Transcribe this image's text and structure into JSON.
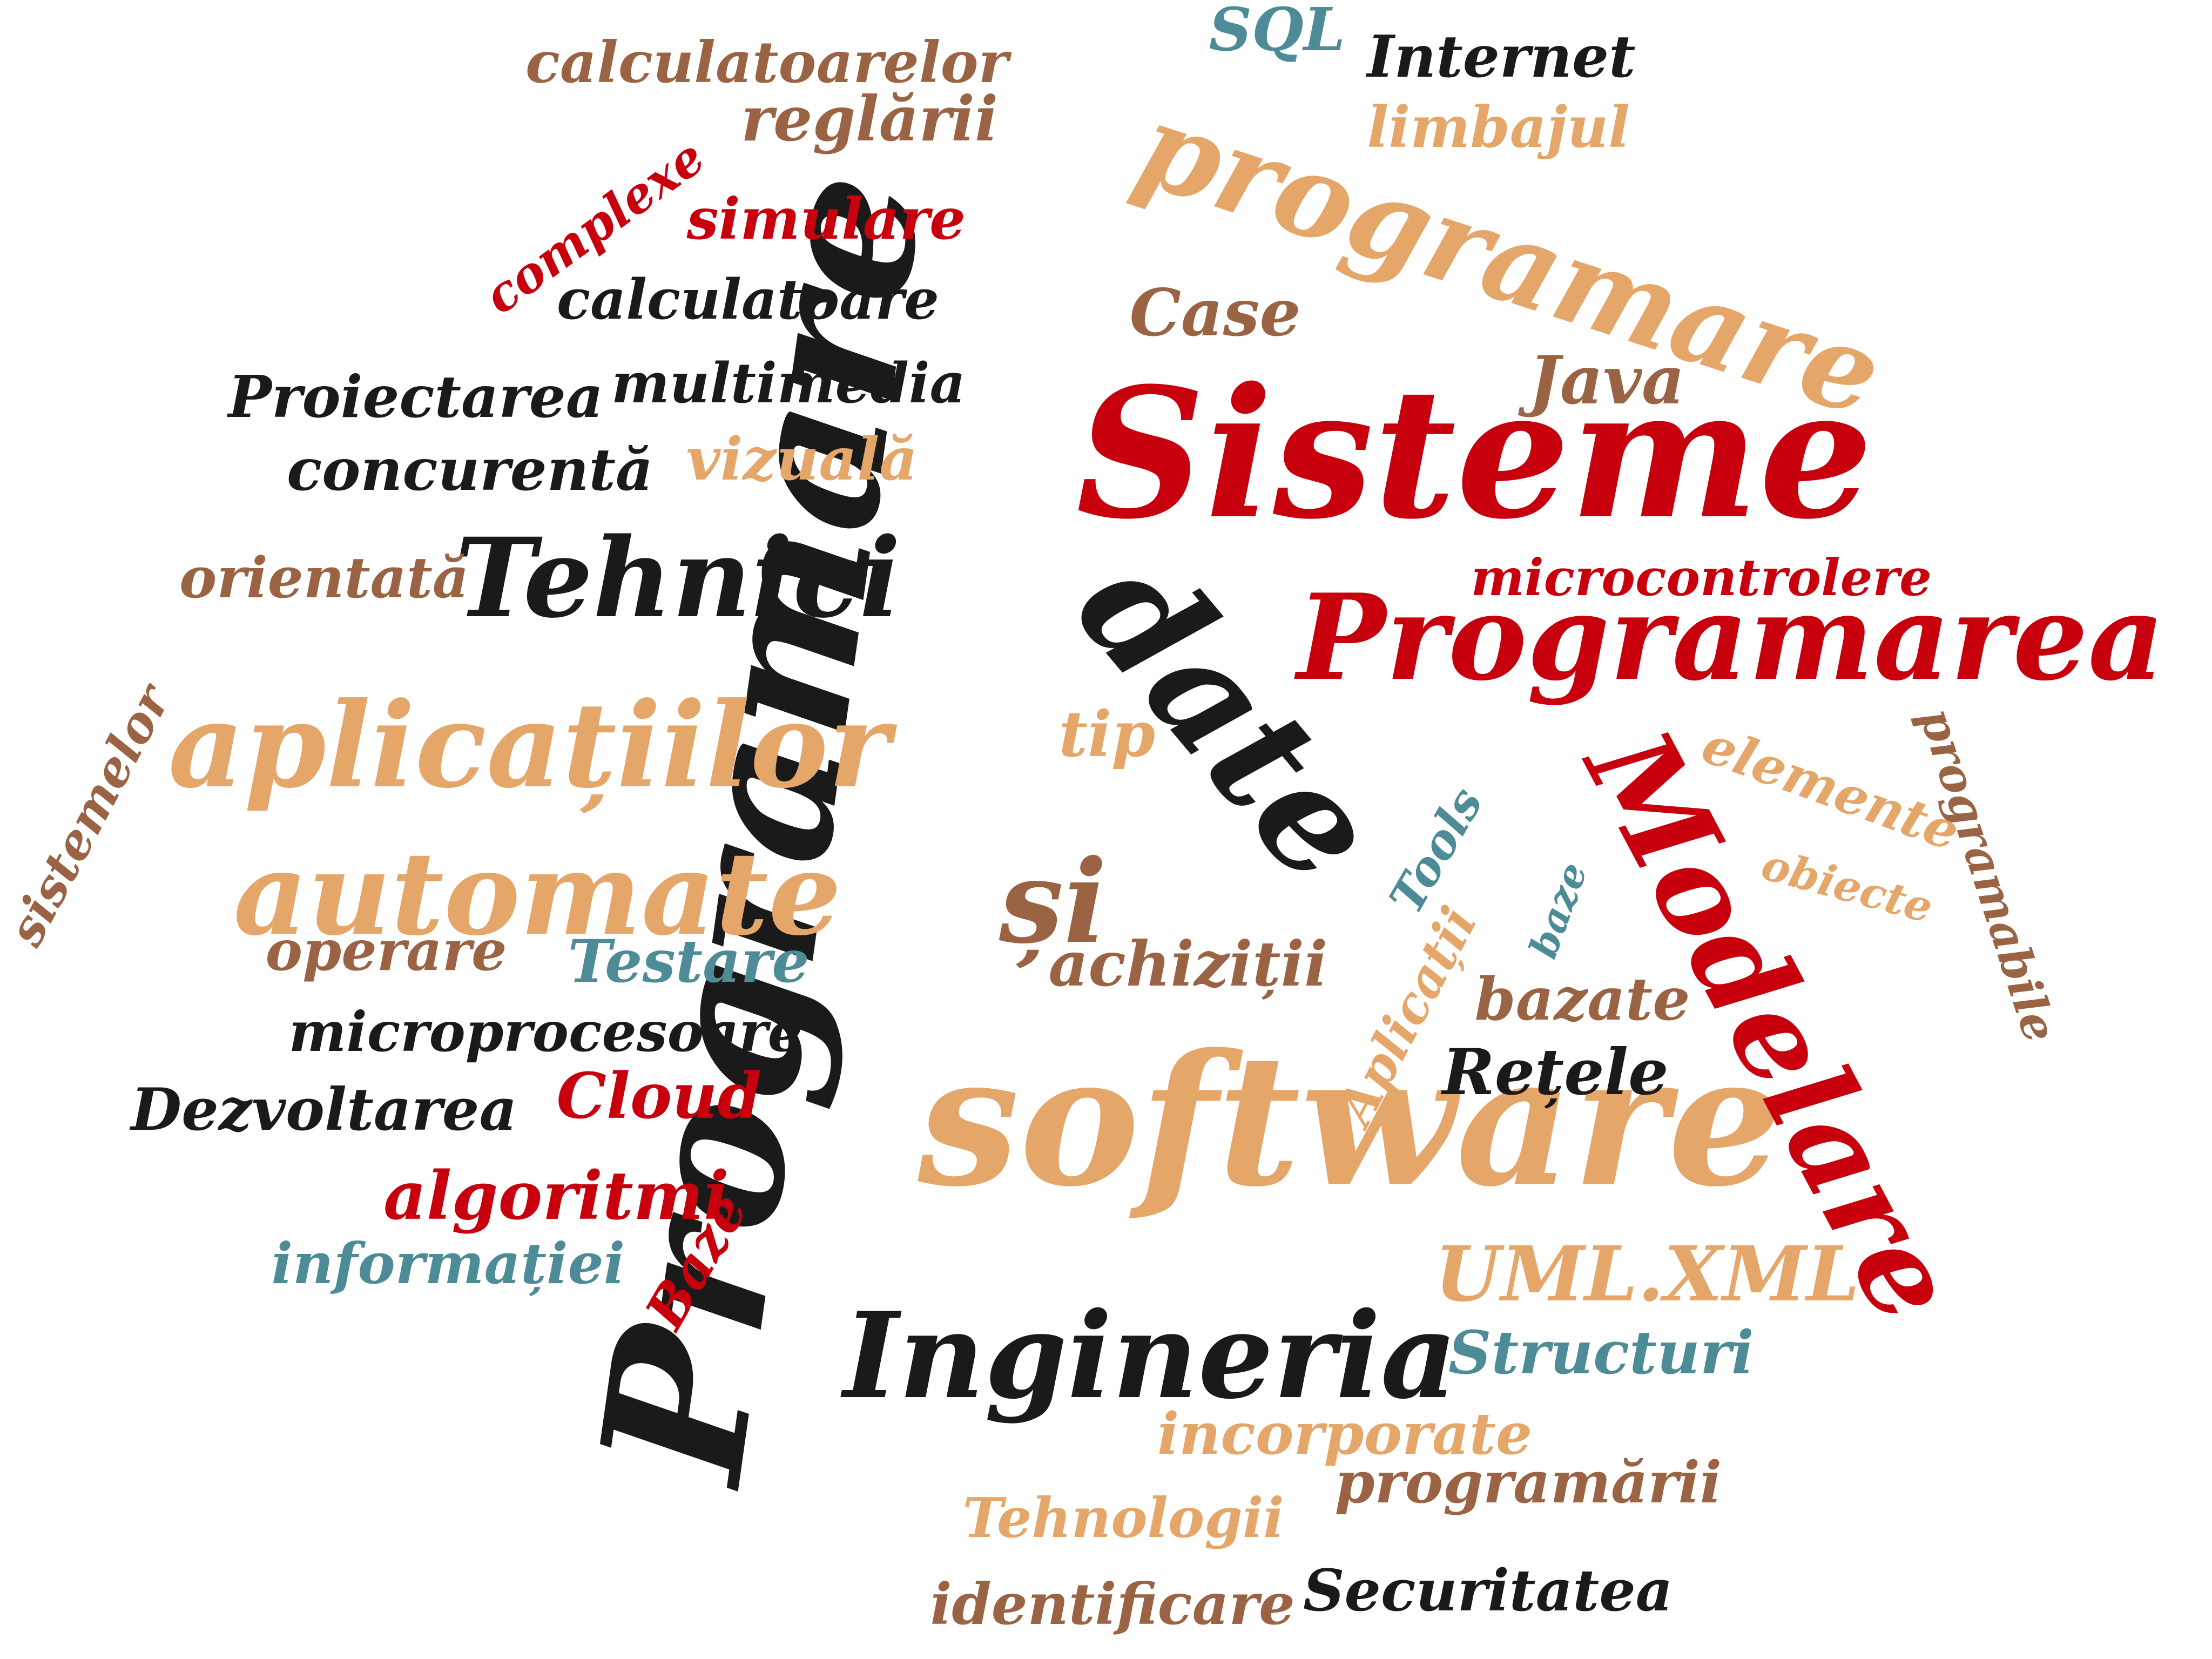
{
  "palette": {
    "black": "#1a1a1a",
    "red": "#c8000e",
    "tan": "#e5a66a",
    "brown": "#9a6444",
    "teal": "#4d8c97"
  },
  "words": [
    {
      "text": "Programare",
      "color": "black"
    },
    {
      "text": "Sisteme",
      "color": "red"
    },
    {
      "text": "software",
      "color": "tan"
    },
    {
      "text": "programare",
      "color": "tan"
    },
    {
      "text": "date",
      "color": "black"
    },
    {
      "text": "Programarea",
      "color": "red"
    },
    {
      "text": "Modelare",
      "color": "red"
    },
    {
      "text": "aplicațiilor",
      "color": "tan"
    },
    {
      "text": "automate",
      "color": "tan"
    },
    {
      "text": "Tehnici",
      "color": "black"
    },
    {
      "text": "Ingineria",
      "color": "black"
    },
    {
      "text": "și",
      "color": "brown"
    },
    {
      "text": "calculatoarelor",
      "color": "brown"
    },
    {
      "text": "SQL",
      "color": "teal"
    },
    {
      "text": "Internet",
      "color": "black"
    },
    {
      "text": "reglării",
      "color": "brown"
    },
    {
      "text": "limbajul",
      "color": "tan"
    },
    {
      "text": "complexe",
      "color": "red"
    },
    {
      "text": "simulare",
      "color": "red"
    },
    {
      "text": "calculatoare",
      "color": "black"
    },
    {
      "text": "Case",
      "color": "brown"
    },
    {
      "text": "Proiectarea",
      "color": "black"
    },
    {
      "text": "multimedia",
      "color": "black"
    },
    {
      "text": "Java",
      "color": "brown"
    },
    {
      "text": "concurentă",
      "color": "black"
    },
    {
      "text": "vizuală",
      "color": "tan"
    },
    {
      "text": "orientată",
      "color": "brown"
    },
    {
      "text": "microcontrolere",
      "color": "red"
    },
    {
      "text": "programabile",
      "color": "brown"
    },
    {
      "text": "sistemelor",
      "color": "brown"
    },
    {
      "text": "tip",
      "color": "tan"
    },
    {
      "text": "elemente",
      "color": "tan"
    },
    {
      "text": "Tools",
      "color": "teal"
    },
    {
      "text": "obiecte",
      "color": "tan"
    },
    {
      "text": "baze",
      "color": "teal"
    },
    {
      "text": "operare",
      "color": "brown"
    },
    {
      "text": "Testare",
      "color": "teal"
    },
    {
      "text": "achiziții",
      "color": "brown"
    },
    {
      "text": "Aplicații",
      "color": "tan"
    },
    {
      "text": "bazate",
      "color": "brown"
    },
    {
      "text": "microprocesoare",
      "color": "black"
    },
    {
      "text": "Rețele",
      "color": "black"
    },
    {
      "text": "Dezvoltarea",
      "color": "black"
    },
    {
      "text": "Cloud",
      "color": "red"
    },
    {
      "text": "algoritmi",
      "color": "red"
    },
    {
      "text": "Baze",
      "color": "red"
    },
    {
      "text": "informației",
      "color": "teal"
    },
    {
      "text": "UML.XML",
      "color": "tan"
    },
    {
      "text": "Structuri",
      "color": "teal"
    },
    {
      "text": "incorporate",
      "color": "tan"
    },
    {
      "text": "programării",
      "color": "brown"
    },
    {
      "text": "Tehnologii",
      "color": "tan"
    },
    {
      "text": "identificare",
      "color": "brown"
    },
    {
      "text": "Securitatea",
      "color": "black"
    }
  ]
}
